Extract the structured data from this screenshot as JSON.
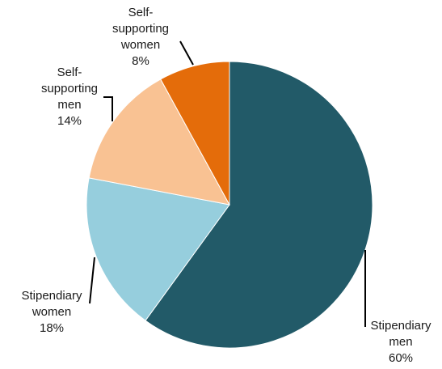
{
  "chart_data": {
    "type": "pie",
    "start_angle_deg": 0,
    "direction": "clockwise",
    "slices": [
      {
        "label_lines": [
          "Stipendiary",
          "men"
        ],
        "value": 60,
        "value_label": "60%",
        "color": "#225a68"
      },
      {
        "label_lines": [
          "Stipendiary",
          "women"
        ],
        "value": 18,
        "value_label": "18%",
        "color": "#96cedd"
      },
      {
        "label_lines": [
          "Self-",
          "supporting",
          "men"
        ],
        "value": 14,
        "value_label": "14%",
        "color": "#f9c293"
      },
      {
        "label_lines": [
          "Self-",
          "supporting",
          "women"
        ],
        "value": 8,
        "value_label": "8%",
        "color": "#e46c0a"
      }
    ]
  }
}
